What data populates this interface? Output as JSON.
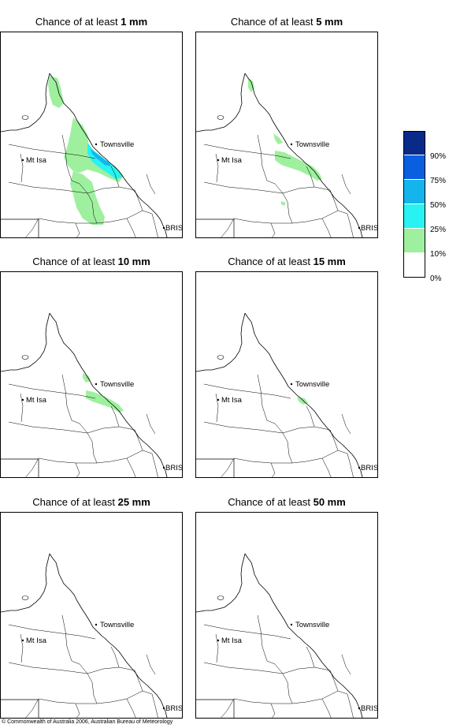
{
  "panels": [
    {
      "title_prefix": "Chance of at least ",
      "amount": "1 mm"
    },
    {
      "title_prefix": "Chance of at least ",
      "amount": "5 mm"
    },
    {
      "title_prefix": "Chance of at least ",
      "amount": "10 mm"
    },
    {
      "title_prefix": "Chance of at least ",
      "amount": "15 mm"
    },
    {
      "title_prefix": "Chance of at least ",
      "amount": "25 mm"
    },
    {
      "title_prefix": "Chance of at least ",
      "amount": "50 mm"
    }
  ],
  "places": {
    "townsville": "Townsville",
    "mt_isa": "Mt Isa",
    "brisbane": "BRIS"
  },
  "legend": {
    "labels": [
      "90%",
      "75%",
      "50%",
      "25%",
      "10%",
      "0%"
    ],
    "colors": [
      "#0a2a8a",
      "#0a5ee0",
      "#14b4ec",
      "#28f2f2",
      "#9ef09e",
      "#ffffff"
    ]
  },
  "copyright": "© Commonwealth of Australia 2006, Australian Bureau of Meteorology"
}
